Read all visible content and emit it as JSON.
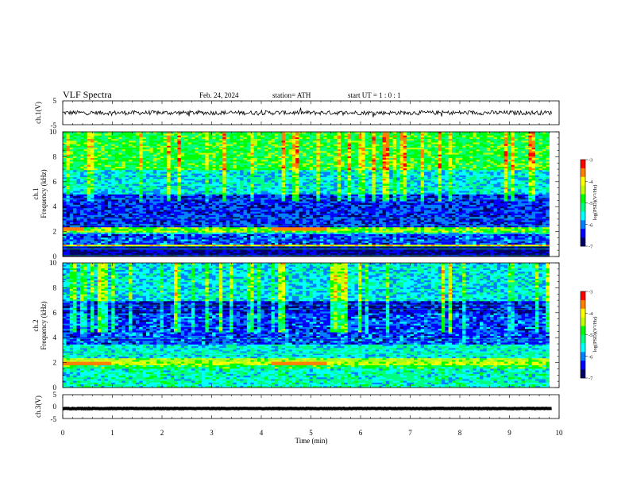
{
  "header": {
    "title": "VLF  Spectra",
    "date": "Feb. 24, 2024",
    "station": "station= ATH",
    "start": "start  UT  =    1 : 0  : 1"
  },
  "chart_data": [
    {
      "type": "line",
      "id": "ch1-waveform",
      "ylabel": "ch.1(V)",
      "ylim": [
        -5,
        5
      ],
      "yticks": [
        "5",
        "-5"
      ],
      "xlim": [
        0,
        10
      ],
      "note_level": 0,
      "noise_amplitude": 0.9
    },
    {
      "type": "heatmap",
      "id": "ch1-spectrogram",
      "ylabel": [
        "ch.1",
        "Frequency  (kHz)"
      ],
      "ylim": [
        0,
        10
      ],
      "yticks": [
        "0",
        "2",
        "4",
        "6",
        "8",
        "10"
      ],
      "xlim": [
        0,
        10
      ],
      "data_xmax": 9.8,
      "colorbar": {
        "label": "log(PSD)(V²/Hz)",
        "range": [
          -7,
          -3
        ],
        "ticks": [
          "-3",
          "-4",
          "-5",
          "-6",
          "-7"
        ]
      },
      "bands": [
        {
          "f": [
            0,
            0.8
          ],
          "level": -6.8
        },
        {
          "f": [
            0.8,
            1.0
          ],
          "level": -4.0
        },
        {
          "f": [
            1.0,
            1.8
          ],
          "level": -6.2
        },
        {
          "f": [
            1.8,
            2.0
          ],
          "level": -5.6
        },
        {
          "f": [
            2.0,
            2.3
          ],
          "level": -4.6
        },
        {
          "f": [
            2.3,
            5.0
          ],
          "level": -6.3
        },
        {
          "f": [
            5.0,
            7.0
          ],
          "level": -5.6
        },
        {
          "f": [
            7.0,
            10.0
          ],
          "level": -4.9
        }
      ],
      "tone_khz": 2.2,
      "tone_segments_min": [
        [
          0.0,
          0.4
        ],
        [
          4.2,
          5.3
        ]
      ]
    },
    {
      "type": "heatmap",
      "id": "ch2-spectrogram",
      "ylabel": [
        "ch.2",
        "Frequency  (kHz)"
      ],
      "ylim": [
        0,
        10
      ],
      "yticks": [
        "0",
        "2",
        "4",
        "6",
        "8",
        "10"
      ],
      "xlim": [
        0,
        10
      ],
      "data_xmax": 9.8,
      "colorbar": {
        "label": "log(PSD)(V²/Hz)",
        "range": [
          -7,
          -3
        ],
        "ticks": [
          "-3",
          "-4",
          "-5",
          "-6",
          "-7"
        ]
      },
      "bands": [
        {
          "f": [
            0,
            1.5
          ],
          "level": -5.4
        },
        {
          "f": [
            1.5,
            1.8
          ],
          "level": -5.0
        },
        {
          "f": [
            1.8,
            2.4
          ],
          "level": -4.3
        },
        {
          "f": [
            2.4,
            3.5
          ],
          "level": -5.5
        },
        {
          "f": [
            3.5,
            6.0
          ],
          "level": -6.2
        },
        {
          "f": [
            6.0,
            7.0
          ],
          "level": -6.5
        },
        {
          "f": [
            7.0,
            10.0
          ],
          "level": -5.6
        }
      ],
      "tone_khz": 2.0,
      "tone_segments_min": [
        [
          0.0,
          1.0
        ],
        [
          4.2,
          5.3
        ]
      ]
    },
    {
      "type": "line",
      "id": "ch3-waveform",
      "ylabel": "ch.3(V)",
      "ylim": [
        -5,
        5
      ],
      "yticks": [
        "5",
        "0",
        "-5"
      ],
      "xlim": [
        0,
        10
      ],
      "note_level": -0.8,
      "noise_amplitude": 0.1
    }
  ],
  "time_axis": {
    "xlabel": "Time  (min)",
    "ticks": [
      "0",
      "1",
      "2",
      "3",
      "4",
      "5",
      "6",
      "7",
      "8",
      "9",
      "10"
    ]
  },
  "colors": {
    "scale": [
      "#000066",
      "#0000ff",
      "#0080ff",
      "#00ffff",
      "#00ff80",
      "#00ff00",
      "#c0ff00",
      "#ffff00",
      "#ff8000",
      "#ff0000",
      "#ffffff"
    ]
  }
}
